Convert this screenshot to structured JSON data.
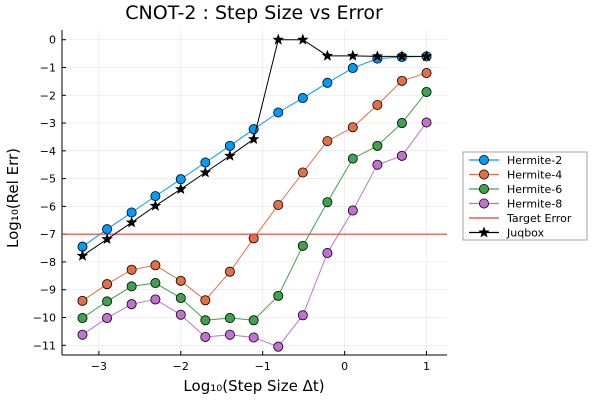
{
  "chart_data": {
    "type": "line",
    "title": "CNOT-2 : Step Size vs Error",
    "xlabel": "Log₁₀(Step Size Δt)",
    "ylabel": "Log₁₀(Rel Err)",
    "xlim": [
      -3.45,
      1.25
    ],
    "ylim": [
      -11.35,
      0.35
    ],
    "xticks": [
      -3,
      -2,
      -1,
      0,
      1
    ],
    "yticks": [
      0,
      -1,
      -2,
      -3,
      -4,
      -5,
      -6,
      -7,
      -8,
      -9,
      -10,
      -11
    ],
    "grid": true,
    "legend": "right",
    "series": [
      {
        "name": "Hermite-2",
        "color": "#009AFA",
        "marker": "circle",
        "x": [
          -3.2,
          -2.9,
          -2.6,
          -2.31,
          -2.0,
          -1.7,
          -1.4,
          -1.11,
          -0.81,
          -0.51,
          -0.21,
          0.1,
          0.4,
          0.7,
          1.0
        ],
        "y": [
          -7.45,
          -6.82,
          -6.22,
          -5.63,
          -5.02,
          -4.42,
          -3.82,
          -3.22,
          -2.62,
          -2.1,
          -1.55,
          -1.02,
          -0.68,
          -0.62,
          -0.6
        ]
      },
      {
        "name": "Hermite-4",
        "color": "#E26F46",
        "marker": "circle",
        "x": [
          -3.2,
          -2.9,
          -2.6,
          -2.31,
          -2.0,
          -1.7,
          -1.4,
          -1.11,
          -0.81,
          -0.51,
          -0.21,
          0.1,
          0.4,
          0.7,
          1.0
        ],
        "y": [
          -9.4,
          -8.8,
          -8.28,
          -8.12,
          -8.68,
          -9.38,
          -8.35,
          -7.15,
          -5.95,
          -4.78,
          -3.65,
          -3.15,
          -2.35,
          -1.48,
          -1.2
        ]
      },
      {
        "name": "Hermite-6",
        "color": "#3DA44D",
        "marker": "circle",
        "x": [
          -3.2,
          -2.9,
          -2.6,
          -2.31,
          -2.0,
          -1.7,
          -1.4,
          -1.11,
          -0.81,
          -0.51,
          -0.21,
          0.1,
          0.4,
          0.7,
          1.0
        ],
        "y": [
          -10.02,
          -9.42,
          -8.88,
          -8.76,
          -9.3,
          -10.1,
          -10.02,
          -10.1,
          -9.22,
          -7.42,
          -5.85,
          -4.28,
          -3.82,
          -3.0,
          -1.88
        ]
      },
      {
        "name": "Hermite-8",
        "color": "#C271D2",
        "marker": "circle",
        "x": [
          -3.2,
          -2.9,
          -2.6,
          -2.31,
          -2.0,
          -1.7,
          -1.4,
          -1.11,
          -0.81,
          -0.51,
          -0.21,
          0.1,
          0.4,
          0.7,
          1.0
        ],
        "y": [
          -10.62,
          -10.02,
          -9.52,
          -9.35,
          -9.9,
          -10.7,
          -10.62,
          -10.72,
          -11.05,
          -9.92,
          -7.68,
          -6.15,
          -4.5,
          -4.18,
          -2.98
        ]
      },
      {
        "name": "Target Error",
        "color": "#E0403B",
        "marker": "none",
        "x": [
          -3.45,
          1.25
        ],
        "y": [
          -7.0,
          -7.0
        ]
      },
      {
        "name": "Juqbox",
        "color": "#000000",
        "marker": "star",
        "x": [
          -3.2,
          -2.9,
          -2.6,
          -2.31,
          -2.0,
          -1.7,
          -1.4,
          -1.11,
          -0.81,
          -0.51,
          -0.21,
          0.1,
          0.4,
          0.7,
          1.0
        ],
        "y": [
          -7.78,
          -7.18,
          -6.58,
          -5.98,
          -5.38,
          -4.78,
          -4.18,
          -3.58,
          0.0,
          0.0,
          -0.58,
          -0.58,
          -0.6,
          -0.6,
          -0.6
        ]
      }
    ]
  }
}
